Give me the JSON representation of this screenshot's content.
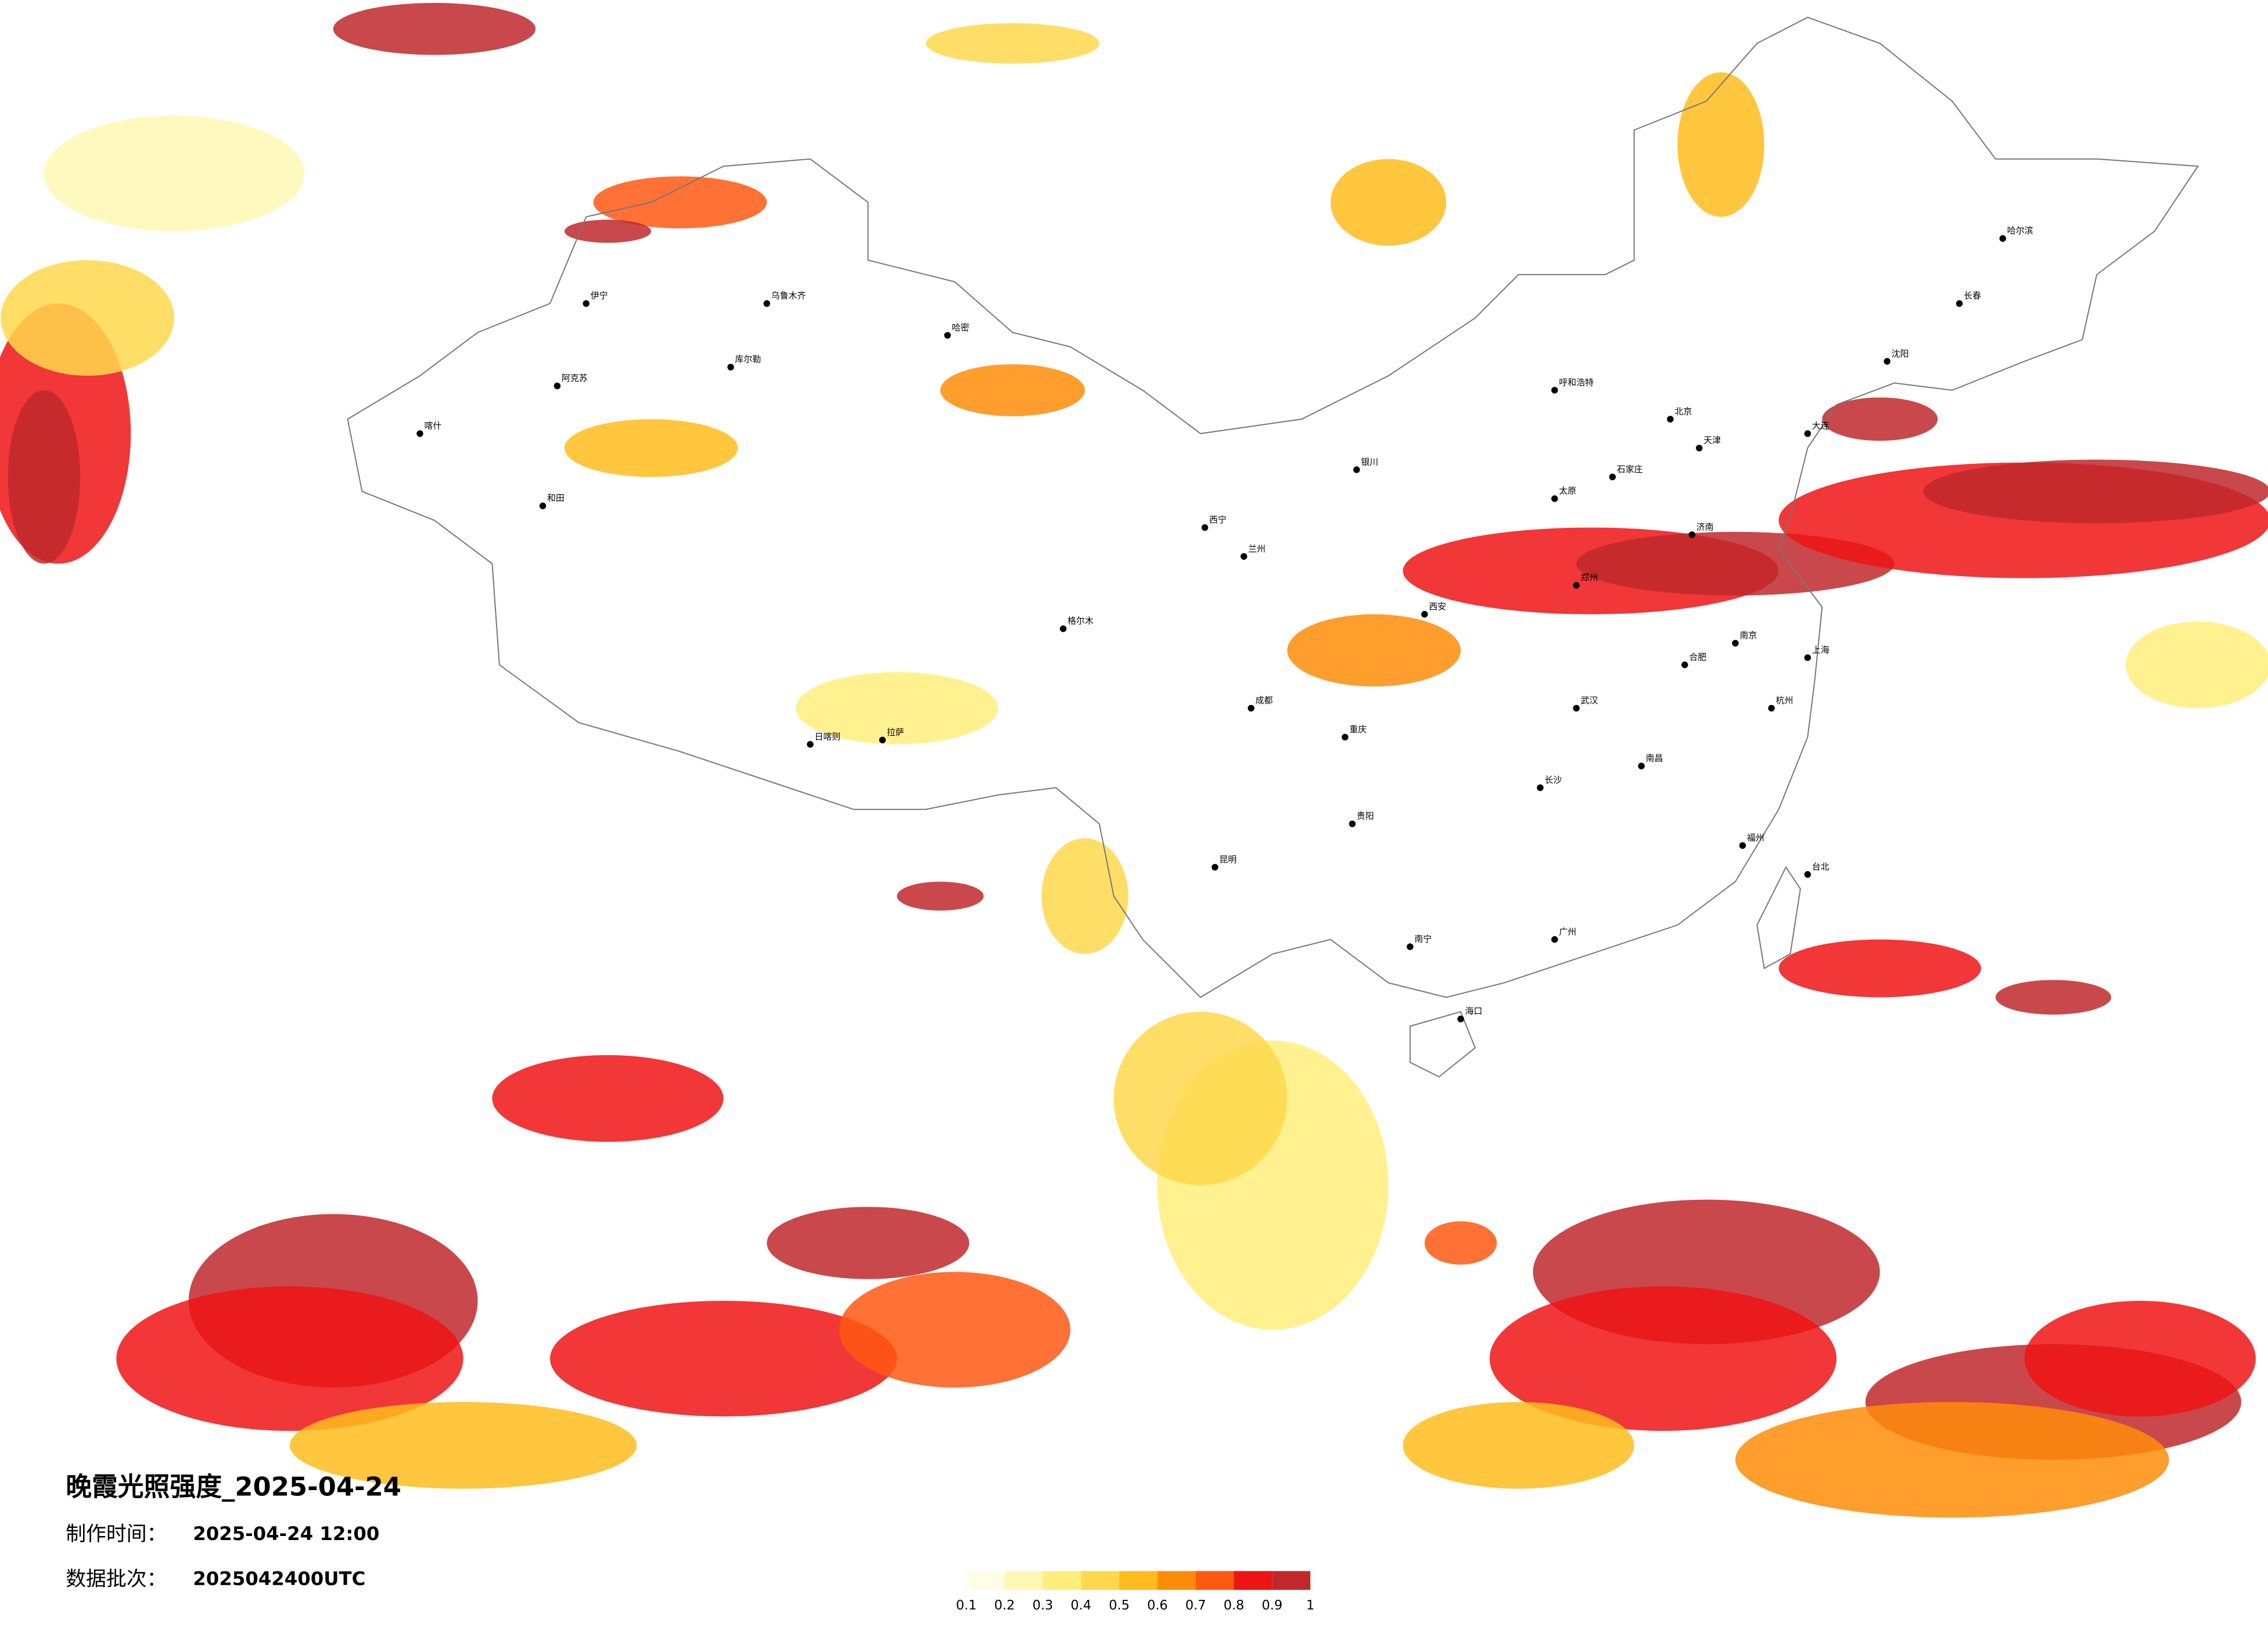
{
  "header": {
    "title": "晚霞光照强度_2025-04-24",
    "made_label": "制作时间：",
    "made_time": "2025-04-24 12:00",
    "batch_label": "数据批次：",
    "batch": "2025042400UTC"
  },
  "legend": {
    "colors": [
      "#fffde6",
      "#fff8b4",
      "#ffee7c",
      "#ffd84c",
      "#ffbc1c",
      "#ff8c08",
      "#ff5812",
      "#ee1414",
      "#c0282c"
    ],
    "ticks": [
      0.1,
      0.2,
      0.3,
      0.4,
      0.5,
      0.6,
      0.7,
      0.8,
      0.9,
      1
    ]
  },
  "cities": [
    "伊宁",
    "乌鲁木齐",
    "哈密",
    "库尔勒",
    "阿克苏",
    "喀什",
    "和田",
    "格尔木",
    "拉萨",
    "日喀则",
    "西宁",
    "兰州",
    "银川",
    "呼和浩特",
    "北京",
    "天津",
    "石家庄",
    "太原",
    "济南",
    "郑州",
    "西安",
    "武汉",
    "长沙",
    "南昌",
    "合肥",
    "南京",
    "上海",
    "杭州",
    "福州",
    "广州",
    "南宁",
    "海口",
    "昆明",
    "贵阳",
    "成都",
    "重庆",
    "哈尔滨",
    "长春",
    "沈阳",
    "大连",
    "台北"
  ]
}
